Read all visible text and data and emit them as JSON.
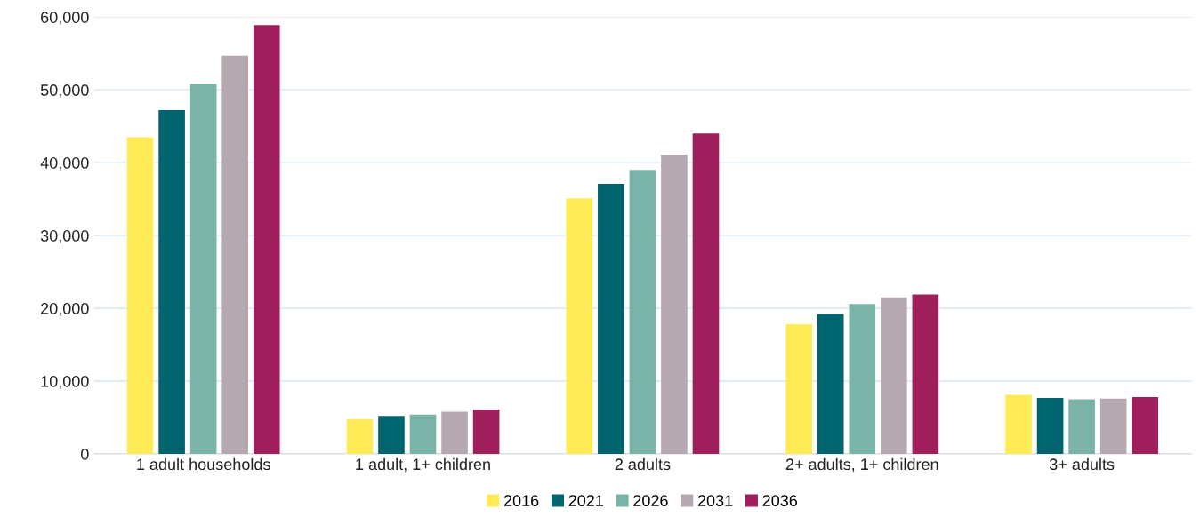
{
  "chart_data": {
    "type": "bar",
    "categories": [
      "1 adult households",
      "1 adult, 1+ children",
      "2 adults",
      "2+ adults, 1+ children",
      "3+ adults"
    ],
    "series": [
      {
        "name": "2016",
        "color": "#ffeb55",
        "values": [
          43500,
          4800,
          35100,
          17800,
          8100
        ]
      },
      {
        "name": "2021",
        "color": "#00646e",
        "values": [
          47200,
          5200,
          37100,
          19200,
          7700
        ]
      },
      {
        "name": "2026",
        "color": "#7ab3a8",
        "values": [
          50800,
          5400,
          39000,
          20600,
          7500
        ]
      },
      {
        "name": "2031",
        "color": "#b5a8b0",
        "values": [
          54700,
          5800,
          41100,
          21500,
          7600
        ]
      },
      {
        "name": "2036",
        "color": "#9e1f5c",
        "values": [
          58900,
          6100,
          44000,
          21900,
          7800
        ]
      }
    ],
    "ylim": [
      0,
      60000
    ],
    "yticks": [
      {
        "value": 0,
        "label": "0"
      },
      {
        "value": 10000,
        "label": "10,000"
      },
      {
        "value": 20000,
        "label": "20,000"
      },
      {
        "value": 30000,
        "label": "30,000"
      },
      {
        "value": 40000,
        "label": "40,000"
      },
      {
        "value": 50000,
        "label": "50,000"
      },
      {
        "value": 60000,
        "label": "60,000"
      }
    ],
    "grid": "y",
    "legend": "bottom"
  }
}
